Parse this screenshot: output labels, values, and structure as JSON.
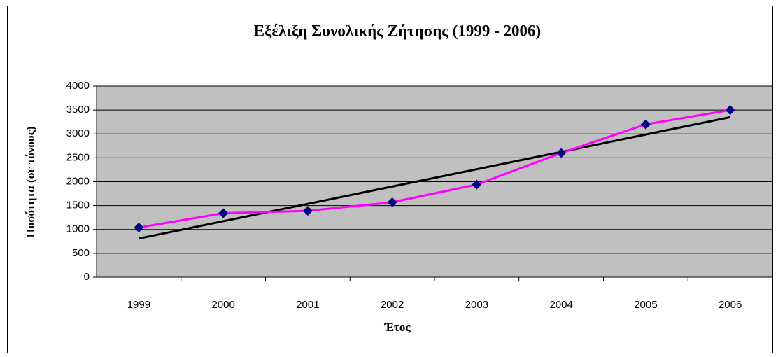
{
  "chart_data": {
    "type": "line",
    "title": "Εξέλιξη Συνολικής Ζήτησης (1999 - 2006)",
    "x_label": "Έτος",
    "y_label": "Ποσότητα (σε τόνους)",
    "categories": [
      "1999",
      "2000",
      "2001",
      "2002",
      "2003",
      "2004",
      "2005",
      "2006"
    ],
    "series": [
      {
        "color": "#ff00ff",
        "marker_color": "#000080",
        "values": [
          1040,
          1340,
          1390,
          1570,
          1940,
          2600,
          3200,
          3500
        ]
      },
      {
        "color": "#000000",
        "values": [
          810,
          1173,
          1536,
          1899,
          2261,
          2624,
          2987,
          3350
        ]
      }
    ],
    "ylim": [
      0,
      4000
    ],
    "yticks": [
      0,
      500,
      1000,
      1500,
      2000,
      2500,
      3000,
      3500,
      4000
    ],
    "grid": true,
    "plot_background": "#c0c0c0"
  }
}
